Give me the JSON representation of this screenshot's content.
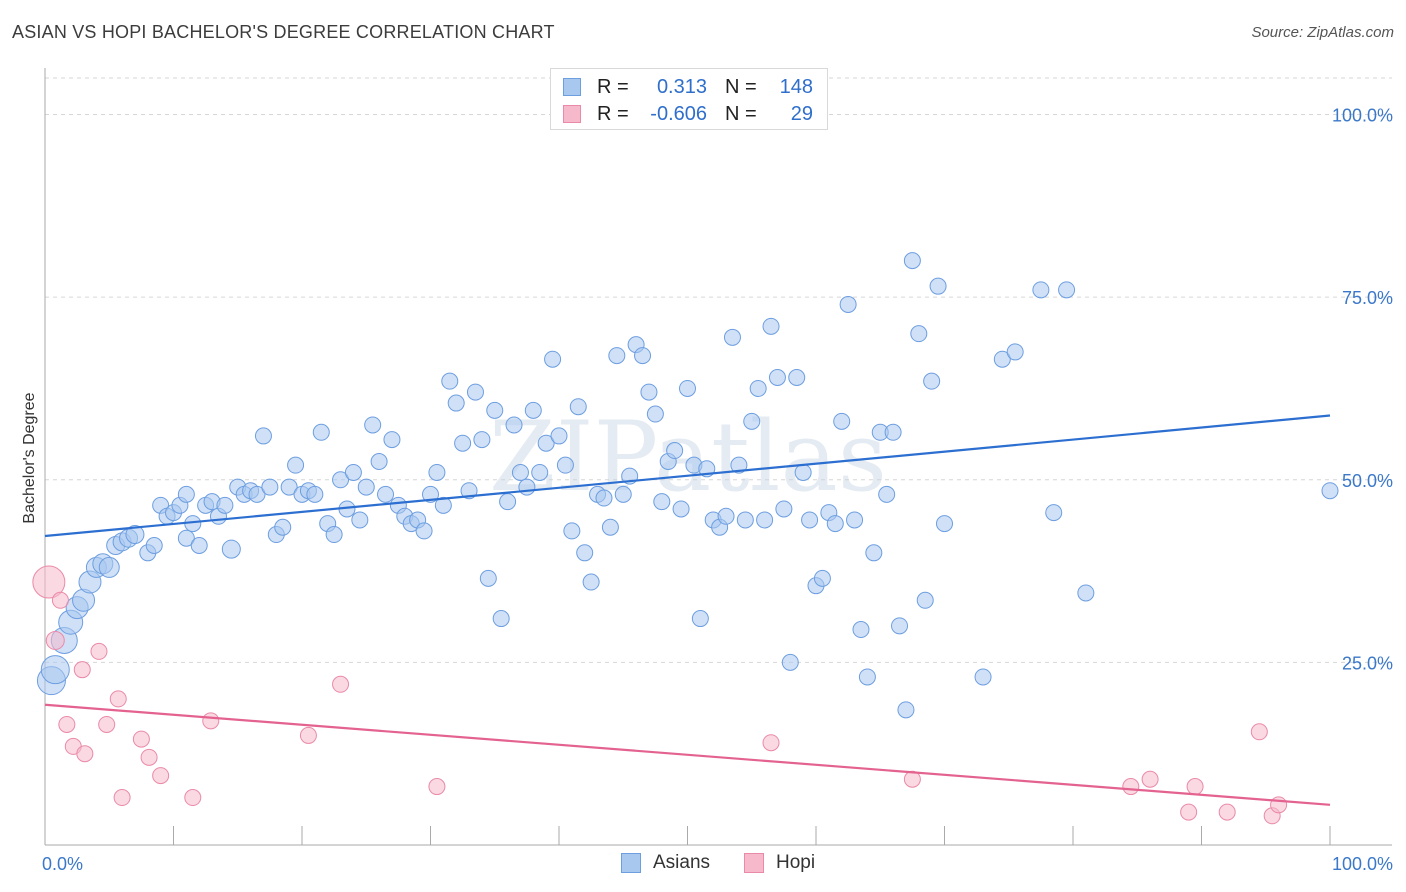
{
  "title": "ASIAN VS HOPI BACHELOR'S DEGREE CORRELATION CHART",
  "source": "Source: ZipAtlas.com",
  "watermark": "ZIPatlas",
  "legend": [
    {
      "r_label": "R =",
      "r_value": "0.313",
      "n_label": "N =",
      "n_value": "148"
    },
    {
      "r_label": "R =",
      "r_value": "-0.606",
      "n_label": "N =",
      "n_value": "29"
    }
  ],
  "bottom_legend": [
    "Asians",
    "Hopi"
  ],
  "colors": {
    "asian_fill": "#a9c8f0",
    "asian_stroke": "#6d9ee0",
    "asian_line": "#2c6fd1",
    "hopi_fill": "#f6b9cc",
    "hopi_stroke": "#ea8aa8",
    "hopi_line": "#e4628f",
    "tick_text": "#3b78c9",
    "grid": "#d6d6d6"
  },
  "chart_data": {
    "type": "scatter",
    "title": "ASIAN VS HOPI BACHELOR'S DEGREE CORRELATION CHART",
    "xlabel": "",
    "ylabel": "Bachelor's Degree",
    "xlim": [
      0,
      100
    ],
    "ylim": [
      0,
      105
    ],
    "x_tick_labels": [
      "0.0%",
      "100.0%"
    ],
    "y_ticks": [
      25,
      50,
      75,
      100
    ],
    "y_tick_labels": [
      "25.0%",
      "50.0%",
      "75.0%",
      "100.0%"
    ],
    "grid": true,
    "legend_position": "top-center",
    "series": [
      {
        "name": "Asians",
        "r": 0.313,
        "n": 148,
        "trend": [
          [
            0,
            42.3
          ],
          [
            100,
            58.8
          ]
        ],
        "points": [
          [
            0.5,
            22.5,
            14
          ],
          [
            0.8,
            24,
            14
          ],
          [
            1.5,
            28,
            13
          ],
          [
            2,
            30.5,
            12
          ],
          [
            2.5,
            32.5,
            11
          ],
          [
            3,
            33.5,
            11
          ],
          [
            3.5,
            36,
            11
          ],
          [
            4,
            38,
            10
          ],
          [
            4.5,
            38.5,
            10
          ],
          [
            5,
            38,
            10
          ],
          [
            5.5,
            41,
            9
          ],
          [
            6,
            41.5,
            9
          ],
          [
            6.5,
            42,
            9
          ],
          [
            7,
            42.5,
            9
          ],
          [
            8,
            40,
            8
          ],
          [
            8.5,
            41,
            8
          ],
          [
            9,
            46.5,
            8
          ],
          [
            9.5,
            45,
            8
          ],
          [
            10,
            45.5,
            8
          ],
          [
            10.5,
            46.5,
            8
          ],
          [
            11,
            48,
            8
          ],
          [
            11,
            42,
            8
          ],
          [
            11.5,
            44,
            8
          ],
          [
            12,
            41,
            8
          ],
          [
            12.5,
            46.5,
            8
          ],
          [
            13,
            47,
            8
          ],
          [
            13.5,
            45,
            8
          ],
          [
            14,
            46.5,
            8
          ],
          [
            14.5,
            40.5,
            9
          ],
          [
            15,
            49,
            8
          ],
          [
            15.5,
            48,
            8
          ],
          [
            16,
            48.5,
            8
          ],
          [
            16.5,
            48,
            8
          ],
          [
            17,
            56,
            8
          ],
          [
            17.5,
            49,
            8
          ],
          [
            18,
            42.5,
            8
          ],
          [
            18.5,
            43.5,
            8
          ],
          [
            19,
            49,
            8
          ],
          [
            19.5,
            52,
            8
          ],
          [
            20,
            48,
            8
          ],
          [
            20.5,
            48.5,
            8
          ],
          [
            21,
            48,
            8
          ],
          [
            21.5,
            56.5,
            8
          ],
          [
            22,
            44,
            8
          ],
          [
            22.5,
            42.5,
            8
          ],
          [
            23,
            50,
            8
          ],
          [
            23.5,
            46,
            8
          ],
          [
            24,
            51,
            8
          ],
          [
            24.5,
            44.5,
            8
          ],
          [
            25,
            49,
            8
          ],
          [
            25.5,
            57.5,
            8
          ],
          [
            26,
            52.5,
            8
          ],
          [
            26.5,
            48,
            8
          ],
          [
            27,
            55.5,
            8
          ],
          [
            27.5,
            46.5,
            8
          ],
          [
            28,
            45,
            8
          ],
          [
            28.5,
            44,
            8
          ],
          [
            29,
            44.5,
            8
          ],
          [
            29.5,
            43,
            8
          ],
          [
            30,
            48,
            8
          ],
          [
            30.5,
            51,
            8
          ],
          [
            31,
            46.5,
            8
          ],
          [
            31.5,
            63.5,
            8
          ],
          [
            32,
            60.5,
            8
          ],
          [
            32.5,
            55,
            8
          ],
          [
            33,
            48.5,
            8
          ],
          [
            33.5,
            62,
            8
          ],
          [
            34,
            55.5,
            8
          ],
          [
            34.5,
            36.5,
            8
          ],
          [
            35,
            59.5,
            8
          ],
          [
            35.5,
            31,
            8
          ],
          [
            36,
            47,
            8
          ],
          [
            36.5,
            57.5,
            8
          ],
          [
            37,
            51,
            8
          ],
          [
            37.5,
            49,
            8
          ],
          [
            38,
            59.5,
            8
          ],
          [
            38.5,
            51,
            8
          ],
          [
            39,
            55,
            8
          ],
          [
            39.5,
            66.5,
            8
          ],
          [
            40,
            56,
            8
          ],
          [
            40.5,
            52,
            8
          ],
          [
            41,
            43,
            8
          ],
          [
            41.5,
            60,
            8
          ],
          [
            42,
            40,
            8
          ],
          [
            42.5,
            36,
            8
          ],
          [
            43,
            48,
            8
          ],
          [
            43.5,
            47.5,
            8
          ],
          [
            44,
            43.5,
            8
          ],
          [
            44.5,
            67,
            8
          ],
          [
            45,
            48,
            8
          ],
          [
            45.5,
            50.5,
            8
          ],
          [
            46,
            68.5,
            8
          ],
          [
            46.5,
            67,
            8
          ],
          [
            47,
            62,
            8
          ],
          [
            47.5,
            59,
            8
          ],
          [
            48,
            47,
            8
          ],
          [
            48.5,
            52.5,
            8
          ],
          [
            49,
            54,
            8
          ],
          [
            49.5,
            46,
            8
          ],
          [
            50,
            62.5,
            8
          ],
          [
            50.5,
            52,
            8
          ],
          [
            51,
            31,
            8
          ],
          [
            51.5,
            51.5,
            8
          ],
          [
            52,
            44.5,
            8
          ],
          [
            52.5,
            43.5,
            8
          ],
          [
            53,
            45,
            8
          ],
          [
            53.5,
            69.5,
            8
          ],
          [
            54,
            52,
            8
          ],
          [
            54.5,
            44.5,
            8
          ],
          [
            55,
            58,
            8
          ],
          [
            55.5,
            62.5,
            8
          ],
          [
            56,
            44.5,
            8
          ],
          [
            56.5,
            71,
            8
          ],
          [
            57,
            64,
            8
          ],
          [
            57.5,
            46,
            8
          ],
          [
            58,
            25,
            8
          ],
          [
            58.5,
            64,
            8
          ],
          [
            59,
            51,
            8
          ],
          [
            59.5,
            44.5,
            8
          ],
          [
            60,
            35.5,
            8
          ],
          [
            60.5,
            36.5,
            8
          ],
          [
            61,
            45.5,
            8
          ],
          [
            61.5,
            44,
            8
          ],
          [
            62,
            58,
            8
          ],
          [
            62.5,
            74,
            8
          ],
          [
            63,
            44.5,
            8
          ],
          [
            63.5,
            29.5,
            8
          ],
          [
            64,
            23,
            8
          ],
          [
            64.5,
            40,
            8
          ],
          [
            65,
            56.5,
            8
          ],
          [
            65.5,
            48,
            8
          ],
          [
            66,
            56.5,
            8
          ],
          [
            66.5,
            30,
            8
          ],
          [
            67,
            18.5,
            8
          ],
          [
            67.5,
            80,
            8
          ],
          [
            68,
            70,
            8
          ],
          [
            68.5,
            33.5,
            8
          ],
          [
            69,
            63.5,
            8
          ],
          [
            69.5,
            76.5,
            8
          ],
          [
            70,
            44,
            8
          ],
          [
            73,
            23,
            8
          ],
          [
            74.5,
            66.5,
            8
          ],
          [
            75.5,
            67.5,
            8
          ],
          [
            77.5,
            76,
            8
          ],
          [
            78.5,
            45.5,
            8
          ],
          [
            79.5,
            76,
            8
          ],
          [
            81,
            34.5,
            8
          ],
          [
            100,
            48.5,
            8
          ]
        ]
      },
      {
        "name": "Hopi",
        "r": -0.606,
        "n": 29,
        "trend": [
          [
            0,
            19.2
          ],
          [
            100,
            5.5
          ]
        ],
        "points": [
          [
            0.3,
            36,
            16
          ],
          [
            0.8,
            28,
            9
          ],
          [
            1.2,
            33.5,
            8
          ],
          [
            1.7,
            16.5,
            8
          ],
          [
            2.2,
            13.5,
            8
          ],
          [
            2.9,
            24,
            8
          ],
          [
            3.1,
            12.5,
            8
          ],
          [
            4.2,
            26.5,
            8
          ],
          [
            4.8,
            16.5,
            8
          ],
          [
            5.7,
            20,
            8
          ],
          [
            6,
            6.5,
            8
          ],
          [
            7.5,
            14.5,
            8
          ],
          [
            8.1,
            12,
            8
          ],
          [
            9,
            9.5,
            8
          ],
          [
            11.5,
            6.5,
            8
          ],
          [
            12.9,
            17,
            8
          ],
          [
            20.5,
            15,
            8
          ],
          [
            23,
            22,
            8
          ],
          [
            30.5,
            8,
            8
          ],
          [
            56.5,
            14,
            8
          ],
          [
            67.5,
            9,
            8
          ],
          [
            84.5,
            8,
            8
          ],
          [
            86,
            9,
            8
          ],
          [
            89,
            4.5,
            8
          ],
          [
            89.5,
            8,
            8
          ],
          [
            92,
            4.5,
            8
          ],
          [
            94.5,
            15.5,
            8
          ],
          [
            95.5,
            4,
            8
          ],
          [
            96,
            5.5,
            8
          ]
        ]
      }
    ]
  }
}
